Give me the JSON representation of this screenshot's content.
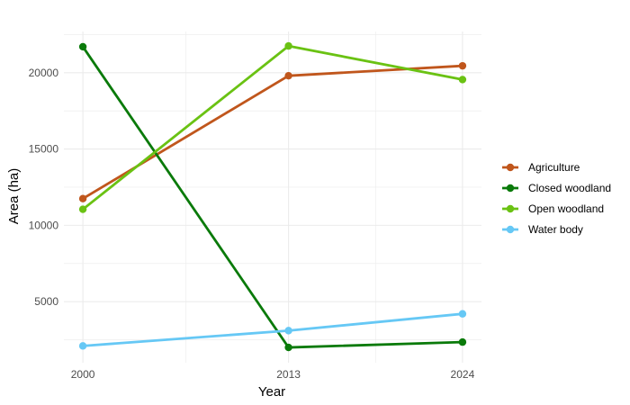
{
  "chart_data": {
    "type": "line",
    "title": "",
    "xlabel": "Year",
    "ylabel": "Area (ha)",
    "x": [
      2000,
      2013,
      2024
    ],
    "x_ticks": [
      "2000",
      "2013",
      "2024"
    ],
    "y_ticks": [
      "5000",
      "10000",
      "15000",
      "20000"
    ],
    "ylim": [
      1000,
      22700
    ],
    "grid": true,
    "legend_position": "right",
    "series": [
      {
        "name": "Agriculture",
        "color": "#C0561C",
        "values": [
          11750,
          19800,
          20450
        ]
      },
      {
        "name": "Closed woodland",
        "color": "#0A7A0A",
        "values": [
          21700,
          2000,
          2350
        ]
      },
      {
        "name": "Open woodland",
        "color": "#6AC213",
        "values": [
          11050,
          21750,
          19550
        ]
      },
      {
        "name": "Water body",
        "color": "#66C8F5",
        "values": [
          2100,
          3100,
          4200
        ]
      }
    ]
  }
}
